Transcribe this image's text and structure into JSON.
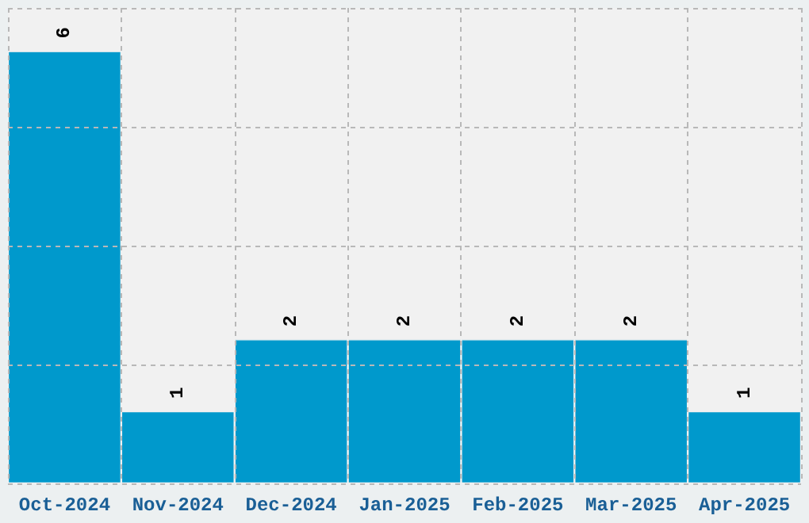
{
  "chart_data": {
    "type": "bar",
    "categories": [
      "Oct-2024",
      "Nov-2024",
      "Dec-2024",
      "Jan-2025",
      "Feb-2025",
      "Mar-2025",
      "Apr-2025"
    ],
    "values": [
      6,
      1,
      2,
      2,
      2,
      2,
      1
    ],
    "color": "#0099cc",
    "data_labels": true,
    "grid": true,
    "tick_labels": "x",
    "ylim": [
      0,
      6.6
    ],
    "yticks": [
      {
        "value": 0,
        "label": null
      },
      {
        "value": 1.65,
        "label": null
      },
      {
        "value": 3.3,
        "label": null
      },
      {
        "value": 4.95,
        "label": null
      },
      {
        "value": 6.6,
        "label": null
      }
    ]
  }
}
